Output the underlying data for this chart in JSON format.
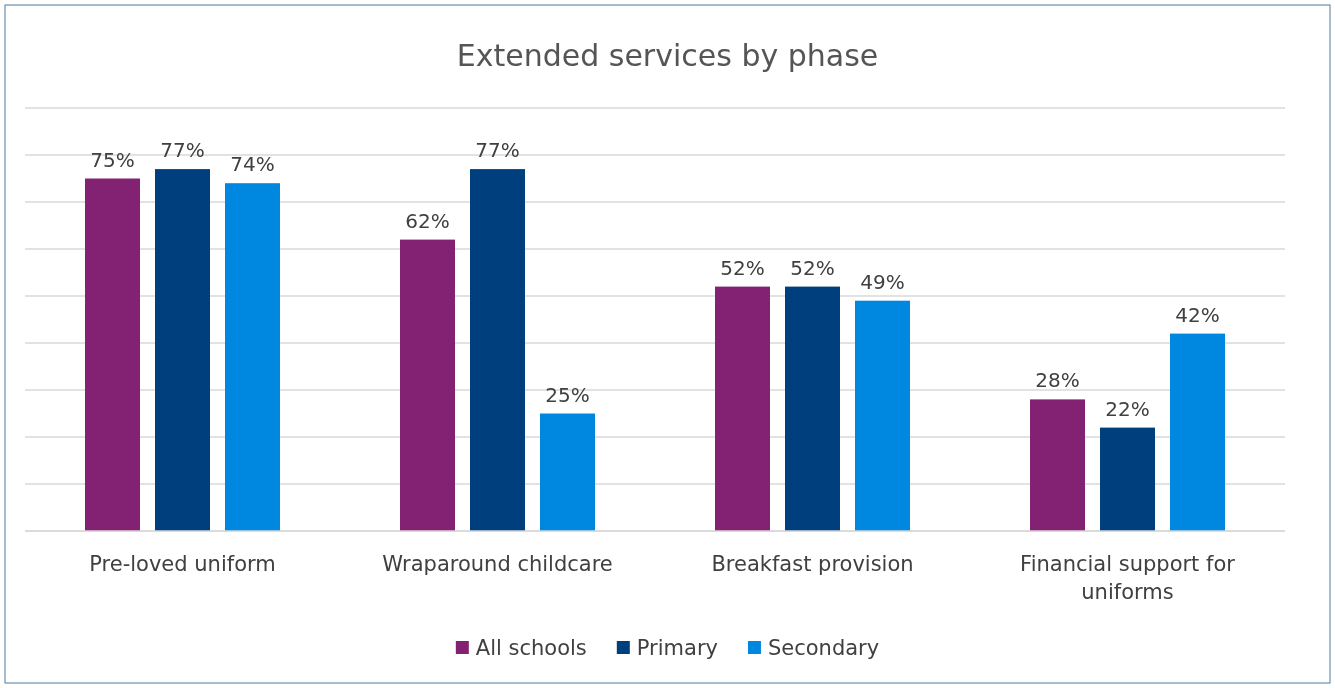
{
  "chart_data": {
    "type": "bar",
    "title": "Extended services by phase",
    "categories": [
      "Pre-loved uniform",
      "Wraparound childcare",
      "Breakfast provision",
      "Financial support for uniforms"
    ],
    "series": [
      {
        "name": "All schools",
        "color": "#832173",
        "values": [
          75,
          62,
          52,
          28
        ],
        "value_labels": [
          "75%",
          "62%",
          "52%",
          "28%"
        ]
      },
      {
        "name": "Primary",
        "color": "#003f7d",
        "values": [
          77,
          77,
          52,
          22
        ],
        "value_labels": [
          "77%",
          "77%",
          "52%",
          "22%"
        ]
      },
      {
        "name": "Secondary",
        "color": "#0088e0",
        "values": [
          74,
          25,
          49,
          42
        ],
        "value_labels": [
          "74%",
          "25%",
          "49%",
          "42%"
        ]
      }
    ],
    "ylim": [
      0,
      90
    ],
    "yticks": [
      {
        "value": 0,
        "label": null
      },
      {
        "value": 10,
        "label": null
      },
      {
        "value": 20,
        "label": null
      },
      {
        "value": 30,
        "label": null
      },
      {
        "value": 40,
        "label": null
      },
      {
        "value": 50,
        "label": null
      },
      {
        "value": 60,
        "label": null
      },
      {
        "value": 70,
        "label": null
      },
      {
        "value": 80,
        "label": null
      },
      {
        "value": 90,
        "label": null
      }
    ],
    "grid": "y",
    "tick_labels": "x",
    "legend": "bottom"
  }
}
